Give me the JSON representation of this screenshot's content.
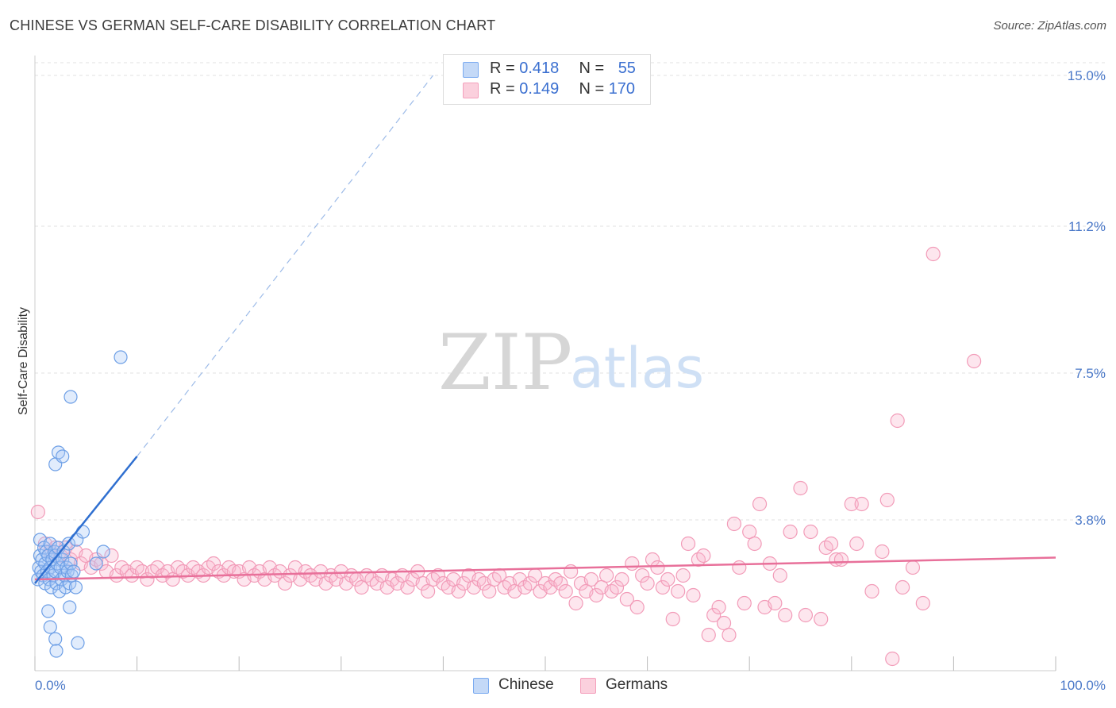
{
  "header": {
    "title": "CHINESE VS GERMAN SELF-CARE DISABILITY CORRELATION CHART",
    "source": "Source: ZipAtlas.com"
  },
  "watermark": {
    "zip": "ZIP",
    "atlas": "atlas"
  },
  "legend": {
    "chinese": {
      "r_label": "R = ",
      "r_value": "0.418",
      "n_label": "N = ",
      "n_value": "55"
    },
    "germans": {
      "r_label": "R = ",
      "r_value": "0.149",
      "n_label": "N = ",
      "n_value": "170"
    }
  },
  "chart_data": {
    "type": "scatter",
    "title": "CHINESE VS GERMAN SELF-CARE DISABILITY CORRELATION CHART",
    "xlabel": "",
    "ylabel": "Self-Care Disability",
    "xlim": [
      0,
      100
    ],
    "ylim": [
      0,
      15.5
    ],
    "x_tick_labels": [
      "0.0%",
      "100.0%"
    ],
    "y_ticks": [
      3.8,
      7.5,
      11.2,
      15.0
    ],
    "y_tick_labels": [
      "3.8%",
      "7.5%",
      "11.2%",
      "15.0%"
    ],
    "grid": true,
    "legend_placement": "top-center",
    "colors": {
      "chinese": "#7aaaf0",
      "germans": "#f4a0bc",
      "chinese_line": "#2f6fd0",
      "germans_line": "#e8709a"
    },
    "series": [
      {
        "name": "Chinese",
        "trend": {
          "x": [
            0,
            10
          ],
          "y": [
            2.2,
            5.4
          ],
          "dashed_to": [
            39,
            15.0
          ]
        },
        "points": [
          [
            0.3,
            2.3
          ],
          [
            0.4,
            2.6
          ],
          [
            0.5,
            2.9
          ],
          [
            0.5,
            3.3
          ],
          [
            0.6,
            2.5
          ],
          [
            0.7,
            2.8
          ],
          [
            0.8,
            2.4
          ],
          [
            0.9,
            3.1
          ],
          [
            1.0,
            2.2
          ],
          [
            1.0,
            2.7
          ],
          [
            1.1,
            3.0
          ],
          [
            1.2,
            2.5
          ],
          [
            1.3,
            2.9
          ],
          [
            1.4,
            2.3
          ],
          [
            1.5,
            2.6
          ],
          [
            1.5,
            3.2
          ],
          [
            1.6,
            2.1
          ],
          [
            1.7,
            2.8
          ],
          [
            1.8,
            2.4
          ],
          [
            1.9,
            3.0
          ],
          [
            2.0,
            2.5
          ],
          [
            2.0,
            2.9
          ],
          [
            2.1,
            2.2
          ],
          [
            2.2,
            2.7
          ],
          [
            2.3,
            3.1
          ],
          [
            2.4,
            2.0
          ],
          [
            2.5,
            2.6
          ],
          [
            2.6,
            2.3
          ],
          [
            2.7,
            2.8
          ],
          [
            2.8,
            3.0
          ],
          [
            2.9,
            2.4
          ],
          [
            3.0,
            2.1
          ],
          [
            3.1,
            2.6
          ],
          [
            3.2,
            2.5
          ],
          [
            3.3,
            3.2
          ],
          [
            3.4,
            2.2
          ],
          [
            3.5,
            2.7
          ],
          [
            3.6,
            2.4
          ],
          [
            3.8,
            2.5
          ],
          [
            4.0,
            2.1
          ],
          [
            1.3,
            1.5
          ],
          [
            1.5,
            1.1
          ],
          [
            2.0,
            0.8
          ],
          [
            2.1,
            0.5
          ],
          [
            3.4,
            1.6
          ],
          [
            4.2,
            0.7
          ],
          [
            2.0,
            5.2
          ],
          [
            2.3,
            5.5
          ],
          [
            2.7,
            5.4
          ],
          [
            3.5,
            6.9
          ],
          [
            8.4,
            7.9
          ],
          [
            4.1,
            3.3
          ],
          [
            4.7,
            3.5
          ],
          [
            6.0,
            2.7
          ],
          [
            6.7,
            3.0
          ]
        ]
      },
      {
        "name": "Germans",
        "trend": {
          "x": [
            0,
            100
          ],
          "y": [
            2.3,
            2.85
          ]
        },
        "points": [
          [
            0.3,
            4.0
          ],
          [
            1.0,
            3.2
          ],
          [
            1.5,
            3.0
          ],
          [
            2.0,
            3.1
          ],
          [
            2.5,
            2.9
          ],
          [
            3.0,
            3.1
          ],
          [
            3.5,
            2.8
          ],
          [
            4.0,
            3.0
          ],
          [
            4.5,
            2.7
          ],
          [
            5.0,
            2.9
          ],
          [
            5.5,
            2.6
          ],
          [
            6.0,
            2.8
          ],
          [
            6.5,
            2.7
          ],
          [
            7.0,
            2.5
          ],
          [
            7.5,
            2.9
          ],
          [
            8.0,
            2.4
          ],
          [
            8.5,
            2.6
          ],
          [
            9.0,
            2.5
          ],
          [
            9.5,
            2.4
          ],
          [
            10.0,
            2.6
          ],
          [
            10.5,
            2.5
          ],
          [
            11.0,
            2.3
          ],
          [
            11.5,
            2.5
          ],
          [
            12.0,
            2.6
          ],
          [
            12.5,
            2.4
          ],
          [
            13.0,
            2.5
          ],
          [
            13.5,
            2.3
          ],
          [
            14.0,
            2.6
          ],
          [
            14.5,
            2.5
          ],
          [
            15.0,
            2.4
          ],
          [
            15.5,
            2.6
          ],
          [
            16.0,
            2.5
          ],
          [
            16.5,
            2.4
          ],
          [
            17.0,
            2.6
          ],
          [
            17.5,
            2.7
          ],
          [
            18.0,
            2.5
          ],
          [
            18.5,
            2.4
          ],
          [
            19.0,
            2.6
          ],
          [
            19.5,
            2.5
          ],
          [
            20.0,
            2.5
          ],
          [
            20.5,
            2.3
          ],
          [
            21.0,
            2.6
          ],
          [
            21.5,
            2.4
          ],
          [
            22.0,
            2.5
          ],
          [
            22.5,
            2.3
          ],
          [
            23.0,
            2.6
          ],
          [
            23.5,
            2.4
          ],
          [
            24.0,
            2.5
          ],
          [
            24.5,
            2.2
          ],
          [
            25.0,
            2.4
          ],
          [
            25.5,
            2.6
          ],
          [
            26.0,
            2.3
          ],
          [
            26.5,
            2.5
          ],
          [
            27.0,
            2.4
          ],
          [
            27.5,
            2.3
          ],
          [
            28.0,
            2.5
          ],
          [
            28.5,
            2.2
          ],
          [
            29.0,
            2.4
          ],
          [
            29.5,
            2.3
          ],
          [
            30.0,
            2.5
          ],
          [
            30.5,
            2.2
          ],
          [
            31.0,
            2.4
          ],
          [
            31.5,
            2.3
          ],
          [
            32.0,
            2.1
          ],
          [
            32.5,
            2.4
          ],
          [
            33.0,
            2.3
          ],
          [
            33.5,
            2.2
          ],
          [
            34.0,
            2.4
          ],
          [
            34.5,
            2.1
          ],
          [
            35.0,
            2.3
          ],
          [
            35.5,
            2.2
          ],
          [
            36.0,
            2.4
          ],
          [
            36.5,
            2.1
          ],
          [
            37.0,
            2.3
          ],
          [
            37.5,
            2.5
          ],
          [
            38.0,
            2.2
          ],
          [
            38.5,
            2.0
          ],
          [
            39.0,
            2.3
          ],
          [
            39.5,
            2.4
          ],
          [
            40.0,
            2.2
          ],
          [
            40.5,
            2.1
          ],
          [
            41.0,
            2.3
          ],
          [
            41.5,
            2.0
          ],
          [
            42.0,
            2.2
          ],
          [
            42.5,
            2.4
          ],
          [
            43.0,
            2.1
          ],
          [
            43.5,
            2.3
          ],
          [
            44.0,
            2.2
          ],
          [
            44.5,
            2.0
          ],
          [
            45.0,
            2.3
          ],
          [
            45.5,
            2.4
          ],
          [
            46.0,
            2.1
          ],
          [
            46.5,
            2.2
          ],
          [
            47.0,
            2.0
          ],
          [
            47.5,
            2.3
          ],
          [
            48.0,
            2.1
          ],
          [
            48.5,
            2.2
          ],
          [
            49.0,
            2.4
          ],
          [
            49.5,
            2.0
          ],
          [
            50.0,
            2.2
          ],
          [
            50.5,
            2.1
          ],
          [
            51.0,
            2.3
          ],
          [
            51.5,
            2.2
          ],
          [
            52.0,
            2.0
          ],
          [
            52.5,
            2.5
          ],
          [
            53.0,
            1.7
          ],
          [
            53.5,
            2.2
          ],
          [
            54.0,
            2.0
          ],
          [
            54.5,
            2.3
          ],
          [
            55.0,
            1.9
          ],
          [
            55.5,
            2.1
          ],
          [
            56.0,
            2.4
          ],
          [
            56.5,
            2.0
          ],
          [
            57.0,
            2.1
          ],
          [
            57.5,
            2.3
          ],
          [
            58.0,
            1.8
          ],
          [
            58.5,
            2.7
          ],
          [
            59.0,
            1.6
          ],
          [
            59.5,
            2.4
          ],
          [
            60.0,
            2.2
          ],
          [
            60.5,
            2.8
          ],
          [
            61.0,
            2.6
          ],
          [
            61.5,
            2.1
          ],
          [
            62.0,
            2.3
          ],
          [
            62.5,
            1.3
          ],
          [
            63.0,
            2.0
          ],
          [
            63.5,
            2.4
          ],
          [
            64.0,
            3.2
          ],
          [
            64.5,
            1.9
          ],
          [
            65.0,
            2.8
          ],
          [
            65.5,
            2.9
          ],
          [
            66.0,
            0.9
          ],
          [
            66.5,
            1.4
          ],
          [
            67.0,
            1.6
          ],
          [
            67.5,
            1.2
          ],
          [
            68.0,
            0.9
          ],
          [
            68.5,
            3.7
          ],
          [
            69.0,
            2.6
          ],
          [
            69.5,
            1.7
          ],
          [
            70.0,
            3.5
          ],
          [
            70.5,
            3.2
          ],
          [
            71.0,
            4.2
          ],
          [
            71.5,
            1.6
          ],
          [
            72.0,
            2.7
          ],
          [
            72.5,
            1.7
          ],
          [
            73.0,
            2.4
          ],
          [
            73.5,
            1.4
          ],
          [
            74.0,
            3.5
          ],
          [
            75.0,
            4.6
          ],
          [
            75.5,
            1.4
          ],
          [
            76.0,
            3.5
          ],
          [
            77.0,
            1.3
          ],
          [
            77.5,
            3.1
          ],
          [
            78.0,
            3.2
          ],
          [
            78.5,
            2.8
          ],
          [
            79.0,
            2.8
          ],
          [
            80.0,
            4.2
          ],
          [
            80.5,
            3.2
          ],
          [
            81.0,
            4.2
          ],
          [
            82.0,
            2.0
          ],
          [
            83.0,
            3.0
          ],
          [
            83.5,
            4.3
          ],
          [
            84.0,
            0.3
          ],
          [
            84.5,
            6.3
          ],
          [
            85.0,
            2.1
          ],
          [
            86.0,
            2.6
          ],
          [
            87.0,
            1.7
          ],
          [
            88.0,
            10.5
          ],
          [
            92.0,
            7.8
          ]
        ]
      }
    ]
  },
  "bottom_legend": {
    "chinese": "Chinese",
    "germans": "Germans"
  }
}
